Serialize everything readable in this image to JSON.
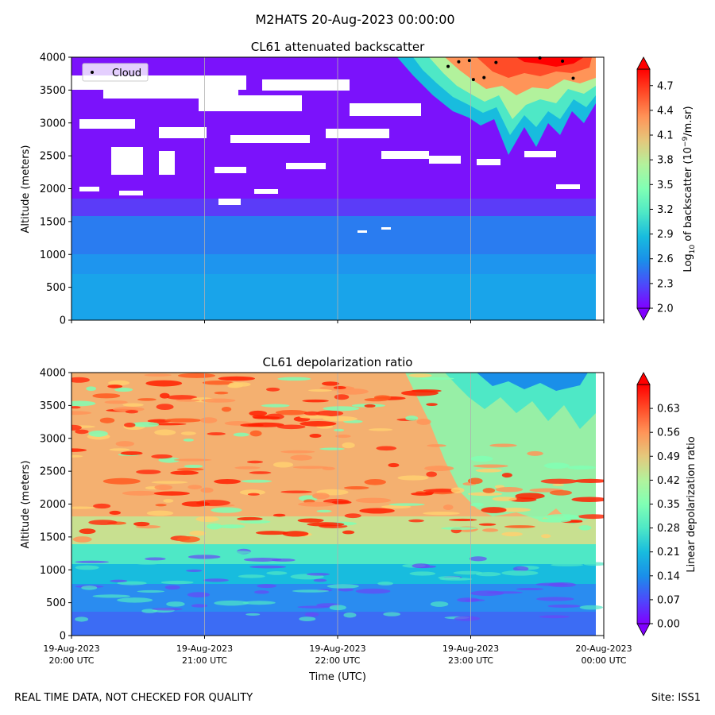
{
  "figure": {
    "suptitle": "M2HATS 20-Aug-2023 00:00:00",
    "footer_left": "REAL TIME DATA, NOT CHECKED FOR QUALITY",
    "footer_right": "Site: ISS1"
  },
  "chart_data": [
    {
      "type": "heatmap",
      "title": "CL61 attenuated backscatter",
      "ylabel": "Altitude (meters)",
      "xlabel": "",
      "ylim": [
        0,
        4000
      ],
      "yticks": [
        0,
        500,
        1000,
        1500,
        2000,
        2500,
        3000,
        3500,
        4000
      ],
      "xlim": [
        "2023-08-19 20:00",
        "2023-08-20 00:00"
      ],
      "grid": "vertical gridlines at each hour",
      "legend": {
        "position": "top-left",
        "entries": [
          "Cloud"
        ]
      },
      "colormap": "rainbow",
      "colorbar": {
        "label_pre": "Log",
        "label_sub": "10",
        "label_mid": " of backscatter (10",
        "label_sup": "−9",
        "label_post": "/m.sr)",
        "range": [
          2.0,
          4.9
        ],
        "ticks": [
          "2.0",
          "2.3",
          "2.6",
          "2.9",
          "3.2",
          "3.5",
          "3.8",
          "4.1",
          "4.4",
          "4.7"
        ],
        "extend": "both"
      },
      "cloud_points": [
        {
          "t": 2.83,
          "alt": 3860
        },
        {
          "t": 2.91,
          "alt": 3930
        },
        {
          "t": 2.99,
          "alt": 3950
        },
        {
          "t": 3.02,
          "alt": 3660
        },
        {
          "t": 3.1,
          "alt": 3690
        },
        {
          "t": 3.19,
          "alt": 3920
        },
        {
          "t": 3.52,
          "alt": 3990
        },
        {
          "t": 3.69,
          "alt": 3940
        },
        {
          "t": 3.77,
          "alt": 3680
        }
      ]
    },
    {
      "type": "heatmap",
      "title": "CL61 depolarization ratio",
      "ylabel": "Altitude (meters)",
      "xlabel": "Time (UTC)",
      "ylim": [
        0,
        4000
      ],
      "yticks": [
        0,
        500,
        1000,
        1500,
        2000,
        2500,
        3000,
        3500,
        4000
      ],
      "xticks": [
        {
          "line1": "19-Aug-2023",
          "line2": "20:00 UTC"
        },
        {
          "line1": "19-Aug-2023",
          "line2": "21:00 UTC"
        },
        {
          "line1": "19-Aug-2023",
          "line2": "22:00 UTC"
        },
        {
          "line1": "19-Aug-2023",
          "line2": "23:00 UTC"
        },
        {
          "line1": "20-Aug-2023",
          "line2": "00:00 UTC"
        }
      ],
      "grid": "vertical gridlines at each hour",
      "colormap": "rainbow",
      "colorbar": {
        "label": "Linear depolarization ratio",
        "range": [
          0.0,
          0.7
        ],
        "ticks": [
          "0.00",
          "0.07",
          "0.14",
          "0.21",
          "0.28",
          "0.35",
          "0.42",
          "0.49",
          "0.56",
          "0.63"
        ],
        "extend": "both"
      }
    }
  ]
}
